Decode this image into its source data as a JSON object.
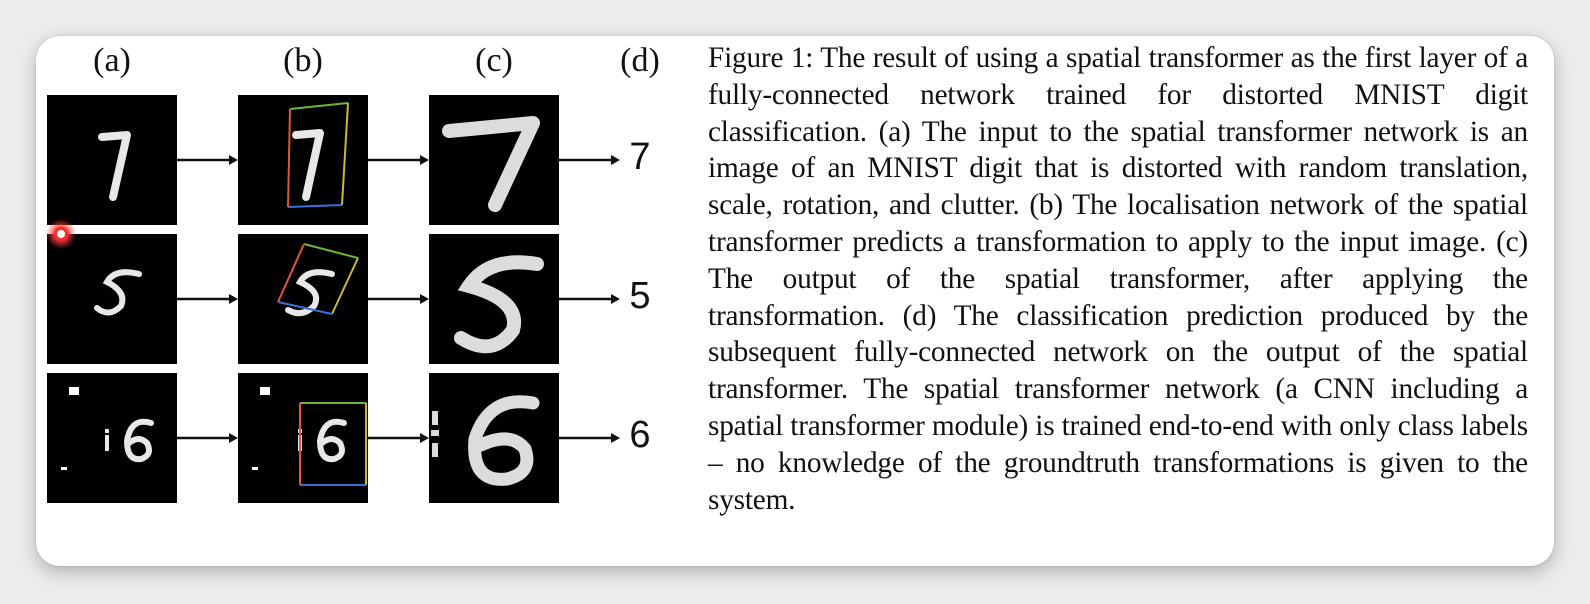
{
  "figure": {
    "column_labels": [
      "(a)",
      "(b)",
      "(c)",
      "(d)"
    ],
    "predictions": [
      "7",
      "5",
      "6"
    ],
    "rows": [
      {
        "digit": "7"
      },
      {
        "digit": "5"
      },
      {
        "digit": "6"
      }
    ]
  },
  "caption": {
    "text": "Figure 1:  The result of using a spatial transformer as the first layer of a fully-connected network trained for distorted MNIST digit classification. (a) The input to the spatial transformer network is an image of an MNIST digit that is distorted with random translation, scale, rotation, and clutter. (b) The localisation network of the spatial transformer predicts a transformation to apply to the input image.  (c) The output of the spatial transformer, after applying the transformation. (d) The classification prediction produced by the subsequent fully-connected network on the output of the spatial transformer. The spatial transformer network (a CNN including a spatial transformer module) is trained end-to-end with only class labels – no knowledge of the groundtruth transformations is given to the system."
  },
  "colors": {
    "box_top": "#6fb33a",
    "box_left": "#e2553a",
    "box_bottom": "#3b6fd8",
    "box_right": "#c9b83a",
    "cursor": "#ff2d2d"
  }
}
